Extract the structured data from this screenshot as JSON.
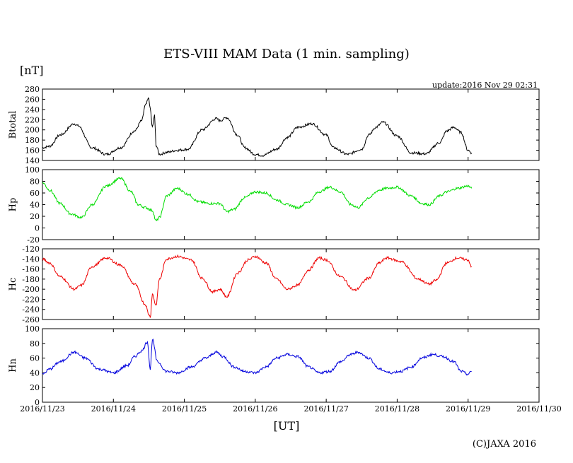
{
  "header": {
    "title": "ETS-VIII MAM Data (1 min. sampling)",
    "unit": "[nT]",
    "update": "update:2016 Nov 29 02:31"
  },
  "footer": {
    "xlabel": "[UT]",
    "credit": "(C)JAXA 2016"
  },
  "chart_data": [
    {
      "type": "line",
      "name": "Btotal",
      "ylabel": "Btotal",
      "color": "#000000",
      "ylim": [
        140,
        280
      ],
      "yticks": [
        140,
        160,
        180,
        200,
        220,
        240,
        260,
        280
      ],
      "x": [
        0,
        0.1,
        0.25,
        0.45,
        0.5,
        0.7,
        0.9,
        1.1,
        1.3,
        1.4,
        1.45,
        1.5,
        1.52,
        1.55,
        1.58,
        1.6,
        1.65,
        1.75,
        1.9,
        2.05,
        2.25,
        2.45,
        2.5,
        2.6,
        2.75,
        2.85,
        3.0,
        3.1,
        3.3,
        3.45,
        3.6,
        3.8,
        4.0,
        4.1,
        4.3,
        4.5,
        4.6,
        4.7,
        4.8,
        5.0,
        5.2,
        5.4,
        5.6,
        5.7,
        5.8,
        5.9,
        6.0,
        6.05
      ],
      "values": [
        165,
        168,
        190,
        212,
        208,
        165,
        152,
        165,
        198,
        218,
        248,
        262,
        240,
        205,
        228,
        170,
        152,
        156,
        160,
        162,
        200,
        222,
        218,
        224,
        190,
        165,
        152,
        150,
        162,
        185,
        205,
        212,
        190,
        165,
        152,
        162,
        190,
        205,
        215,
        188,
        155,
        153,
        175,
        198,
        205,
        195,
        160,
        155
      ]
    },
    {
      "type": "line",
      "name": "Hp",
      "ylabel": "Hp",
      "color": "#00dd00",
      "ylim": [
        -20,
        100
      ],
      "yticks": [
        -20,
        0,
        20,
        40,
        60,
        80,
        100
      ],
      "x": [
        0,
        0.1,
        0.25,
        0.4,
        0.55,
        0.7,
        0.9,
        1.1,
        1.25,
        1.35,
        1.45,
        1.55,
        1.6,
        1.65,
        1.75,
        1.9,
        2.05,
        2.2,
        2.35,
        2.5,
        2.6,
        2.7,
        2.85,
        3.0,
        3.15,
        3.3,
        3.45,
        3.6,
        3.75,
        3.9,
        4.05,
        4.2,
        4.35,
        4.45,
        4.6,
        4.75,
        4.85,
        5.0,
        5.2,
        5.35,
        5.45,
        5.6,
        5.7,
        5.85,
        6.0,
        6.05
      ],
      "values": [
        78,
        65,
        42,
        24,
        18,
        40,
        72,
        85,
        62,
        40,
        35,
        30,
        12,
        18,
        55,
        68,
        58,
        45,
        42,
        42,
        28,
        32,
        52,
        62,
        60,
        48,
        40,
        35,
        45,
        62,
        70,
        62,
        40,
        35,
        52,
        65,
        68,
        70,
        55,
        42,
        40,
        55,
        62,
        68,
        72,
        68
      ]
    },
    {
      "type": "line",
      "name": "Hc",
      "ylabel": "Hc",
      "color": "#ee0000",
      "ylim": [
        -260,
        -120
      ],
      "yticks": [
        -260,
        -240,
        -220,
        -200,
        -180,
        -160,
        -140,
        -120
      ],
      "x": [
        0,
        0.1,
        0.25,
        0.45,
        0.55,
        0.7,
        0.9,
        1.1,
        1.3,
        1.45,
        1.5,
        1.52,
        1.55,
        1.6,
        1.65,
        1.75,
        1.9,
        2.1,
        2.25,
        2.4,
        2.5,
        2.6,
        2.75,
        2.9,
        3.0,
        3.15,
        3.3,
        3.45,
        3.6,
        3.75,
        3.9,
        4.0,
        4.2,
        4.4,
        4.6,
        4.75,
        4.85,
        5.05,
        5.3,
        5.45,
        5.55,
        5.7,
        5.85,
        6.0,
        6.05
      ],
      "values": [
        -140,
        -148,
        -175,
        -200,
        -192,
        -155,
        -138,
        -152,
        -190,
        -230,
        -250,
        -255,
        -210,
        -232,
        -180,
        -140,
        -135,
        -142,
        -178,
        -205,
        -200,
        -215,
        -168,
        -142,
        -135,
        -148,
        -180,
        -200,
        -192,
        -162,
        -138,
        -142,
        -175,
        -202,
        -178,
        -148,
        -138,
        -145,
        -180,
        -190,
        -182,
        -148,
        -138,
        -142,
        -155
      ]
    },
    {
      "type": "line",
      "name": "Hn",
      "ylabel": "Hn",
      "color": "#0000dd",
      "ylim": [
        0,
        100
      ],
      "yticks": [
        0,
        20,
        40,
        60,
        80,
        100
      ],
      "x": [
        0,
        0.1,
        0.25,
        0.45,
        0.6,
        0.8,
        1.0,
        1.2,
        1.3,
        1.4,
        1.48,
        1.52,
        1.55,
        1.62,
        1.75,
        1.9,
        2.1,
        2.3,
        2.45,
        2.55,
        2.7,
        2.85,
        3.0,
        3.15,
        3.3,
        3.45,
        3.6,
        3.75,
        3.9,
        4.05,
        4.2,
        4.35,
        4.45,
        4.6,
        4.75,
        4.9,
        5.05,
        5.2,
        5.35,
        5.5,
        5.65,
        5.8,
        5.9,
        6.0,
        6.05
      ],
      "values": [
        38,
        45,
        55,
        68,
        60,
        45,
        40,
        50,
        62,
        70,
        82,
        45,
        85,
        55,
        42,
        40,
        48,
        60,
        68,
        62,
        48,
        42,
        40,
        48,
        60,
        65,
        62,
        48,
        40,
        42,
        55,
        65,
        68,
        60,
        45,
        40,
        42,
        48,
        60,
        65,
        62,
        55,
        42,
        38,
        42
      ]
    }
  ],
  "x_axis": {
    "ticks": [
      {
        "pos": 0,
        "label": "2016/11/23"
      },
      {
        "pos": 1,
        "label": "2016/11/24"
      },
      {
        "pos": 2,
        "label": "2016/11/25"
      },
      {
        "pos": 3,
        "label": "2016/11/26"
      },
      {
        "pos": 4,
        "label": "2016/11/27"
      },
      {
        "pos": 5,
        "label": "2016/11/28"
      },
      {
        "pos": 6,
        "label": "2016/11/29"
      },
      {
        "pos": 7,
        "label": "2016/11/30"
      }
    ],
    "range": [
      0,
      7
    ]
  }
}
